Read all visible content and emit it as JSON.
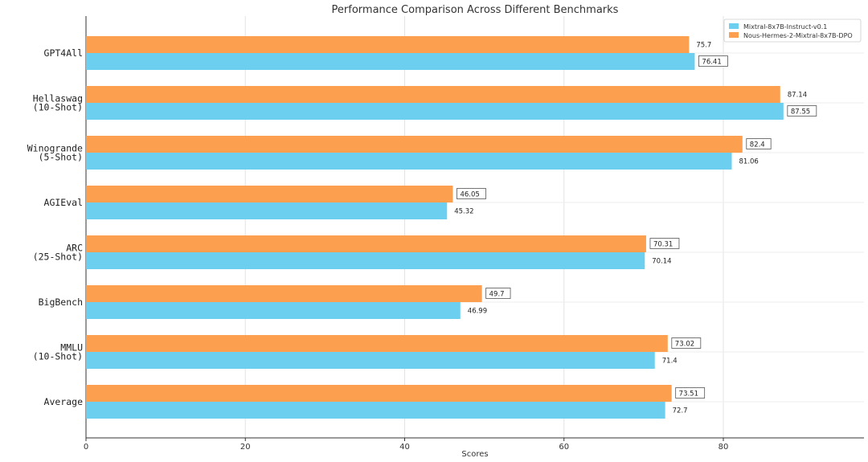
{
  "chart_data": {
    "type": "bar",
    "orientation": "horizontal",
    "title": "Performance Comparison Across Different Benchmarks",
    "xlabel": "Scores",
    "ylabel": "",
    "xlim": [
      0,
      95
    ],
    "xticks": [
      0,
      20,
      40,
      60,
      80
    ],
    "grid": true,
    "legend_position": "top-right",
    "categories": [
      [
        "GPT4All"
      ],
      [
        "Hellaswag",
        "(10-Shot)"
      ],
      [
        "Winogrande",
        "(5-Shot)"
      ],
      [
        "AGIEval"
      ],
      [
        "ARC",
        "(25-Shot)"
      ],
      [
        "BigBench"
      ],
      [
        "MMLU",
        "(10-Shot)"
      ],
      [
        "Average"
      ]
    ],
    "series": [
      {
        "name": "Mixtral-8x7B-Instruct-v0.1",
        "color": "#6dcff0",
        "values": [
          76.41,
          87.55,
          81.06,
          45.32,
          70.14,
          46.99,
          71.4,
          72.7
        ],
        "value_labels": [
          "76.41",
          "87.55",
          "81.06",
          "45.32",
          "70.14",
          "46.99",
          "71.4",
          "72.7"
        ],
        "boxed": [
          true,
          true,
          false,
          false,
          false,
          false,
          false,
          false
        ]
      },
      {
        "name": "Nous-Hermes-2-Mixtral-8x7B-DPO",
        "color": "#fca050",
        "values": [
          75.7,
          87.14,
          82.4,
          46.05,
          70.31,
          49.7,
          73.02,
          73.51
        ],
        "value_labels": [
          "75.7",
          "87.14",
          "82.4",
          "46.05",
          "70.31",
          "49.7",
          "73.02",
          "73.51"
        ],
        "boxed": [
          false,
          false,
          true,
          true,
          true,
          true,
          true,
          true
        ]
      }
    ]
  }
}
